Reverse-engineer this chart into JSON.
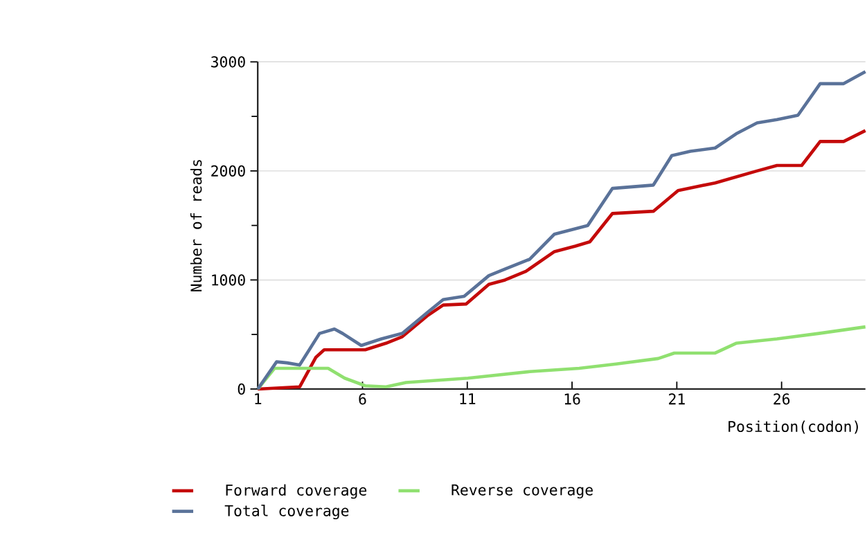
{
  "chart_data": {
    "type": "line",
    "xlabel": "Position(codon)",
    "ylabel": "Number of reads",
    "xlim": [
      1,
      30
    ],
    "ylim": [
      0,
      3000
    ],
    "xticks": [
      1,
      6,
      11,
      16,
      21,
      26
    ],
    "yticks": [
      0,
      {
        "value": 500,
        "label": null
      },
      1000,
      {
        "value": 1500,
        "label": null
      },
      2000,
      {
        "value": 2500,
        "label": null
      },
      3000
    ],
    "grid": "y",
    "legend": "bottom",
    "marker": "none",
    "line_style": "solid",
    "series": [
      {
        "name": "Forward coverage",
        "color": "#c40a0a",
        "x": [
          1,
          3.0,
          3.77,
          4.17,
          6.13,
          7.12,
          7.9,
          9.08,
          9.85,
          10.95,
          12.03,
          12.8,
          13.8,
          15.16,
          16.16,
          16.85,
          17.93,
          19.88,
          21.06,
          22.83,
          24.83,
          25.78,
          26.96,
          27.84,
          28.96,
          30
        ],
        "values": [
          0,
          20,
          290,
          360,
          360,
          420,
          480,
          670,
          770,
          780,
          960,
          1000,
          1080,
          1260,
          1310,
          1350,
          1610,
          1630,
          1820,
          1890,
          2000,
          2050,
          2050,
          2270,
          2270,
          2370
        ]
      },
      {
        "name": "Reverse coverage",
        "color": "#90e070",
        "x": [
          1,
          1.8,
          4.36,
          5.15,
          6.13,
          7.12,
          8.08,
          11.03,
          13.98,
          16.34,
          18.11,
          20.11,
          20.88,
          22.83,
          23.83,
          25.78,
          27.78,
          30
        ],
        "values": [
          0,
          190,
          190,
          100,
          30,
          20,
          60,
          100,
          160,
          190,
          230,
          280,
          330,
          330,
          420,
          460,
          510,
          570
        ]
      },
      {
        "name": "Total coverage",
        "color": "#5a7299",
        "x": [
          1,
          1.9,
          2.4,
          3.0,
          3.95,
          4.66,
          5.05,
          5.94,
          6.9,
          7.9,
          9.08,
          9.85,
          10.85,
          12.03,
          12.8,
          13.98,
          15.16,
          16.75,
          17.93,
          19.88,
          20.76,
          21.65,
          22.83,
          23.83,
          24.83,
          25.78,
          26.78,
          27.84,
          28.96,
          30
        ],
        "values": [
          0,
          250,
          240,
          220,
          510,
          550,
          510,
          400,
          460,
          510,
          700,
          820,
          850,
          1040,
          1100,
          1190,
          1420,
          1500,
          1840,
          1870,
          2140,
          2180,
          2210,
          2340,
          2440,
          2470,
          2510,
          2800,
          2800,
          2910
        ]
      }
    ]
  }
}
